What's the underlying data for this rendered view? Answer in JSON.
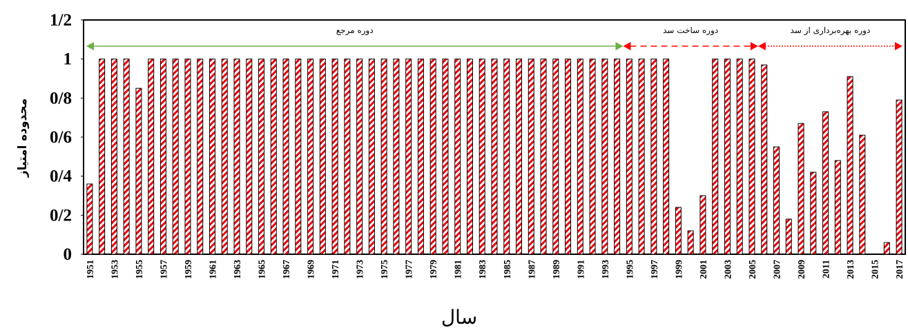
{
  "chart_data": {
    "type": "bar",
    "title": "",
    "xlabel": "سال",
    "ylabel": "محدوده امتیاز",
    "ylim": [
      0,
      1.2
    ],
    "yticks": [
      "0",
      "0/2",
      "0/4",
      "0/6",
      "0/8",
      "1",
      "1/2"
    ],
    "ytick_values": [
      0,
      0.2,
      0.4,
      0.6,
      0.8,
      1.0,
      1.2
    ],
    "grid": false,
    "x": [
      1951,
      1952,
      1953,
      1954,
      1955,
      1956,
      1957,
      1958,
      1959,
      1960,
      1961,
      1962,
      1963,
      1964,
      1965,
      1966,
      1967,
      1968,
      1969,
      1970,
      1971,
      1972,
      1973,
      1974,
      1975,
      1976,
      1977,
      1978,
      1979,
      1980,
      1981,
      1982,
      1983,
      1984,
      1985,
      1986,
      1987,
      1988,
      1989,
      1990,
      1991,
      1992,
      1993,
      1994,
      1995,
      1996,
      1997,
      1998,
      1999,
      2000,
      2001,
      2002,
      2003,
      2004,
      2005,
      2006,
      2007,
      2008,
      2009,
      2010,
      2011,
      2012,
      2013,
      2014,
      2015,
      2016,
      2017
    ],
    "values": [
      0.36,
      1,
      1,
      1,
      0.85,
      1,
      1,
      1,
      1,
      1,
      1,
      1,
      1,
      1,
      1,
      1,
      1,
      1,
      1,
      1,
      1,
      1,
      1,
      1,
      1,
      1,
      1,
      1,
      1,
      1,
      1,
      1,
      1,
      1,
      1,
      1,
      1,
      1,
      1,
      1,
      1,
      1,
      1,
      1,
      1,
      1,
      1,
      1,
      0.24,
      0.12,
      0.3,
      1,
      1,
      1,
      1,
      0.97,
      0.55,
      0.18,
      0.67,
      0.42,
      0.73,
      0.48,
      0.91,
      0.61,
      0,
      0.06,
      0.79
    ],
    "xtick_labels": [
      "1951",
      "1953",
      "1955",
      "1957",
      "1959",
      "1961",
      "1963",
      "1965",
      "1967",
      "1969",
      "1971",
      "1973",
      "1975",
      "1977",
      "1979",
      "1981",
      "1983",
      "1985",
      "1987",
      "1989",
      "1991",
      "1993",
      "1995",
      "1997",
      "1999",
      "2001",
      "2003",
      "2005",
      "2007",
      "2009",
      "2011",
      "2013",
      "2015",
      "2017"
    ],
    "bar_fill": "hatched",
    "bar_color": "#e8000b",
    "periods": [
      {
        "label": "دوره مرجع",
        "start": 1951,
        "end": 1994,
        "color": "#70ad47",
        "line_style": "solid"
      },
      {
        "label": "دوره ساخت سد",
        "start": 1994,
        "end": 2005,
        "color": "#ff0000",
        "line_style": "dashed"
      },
      {
        "label": "دوره بهره‌برداری از سد",
        "start": 2005,
        "end": 2017,
        "color": "#ff0000",
        "line_style": "dotted"
      }
    ]
  }
}
